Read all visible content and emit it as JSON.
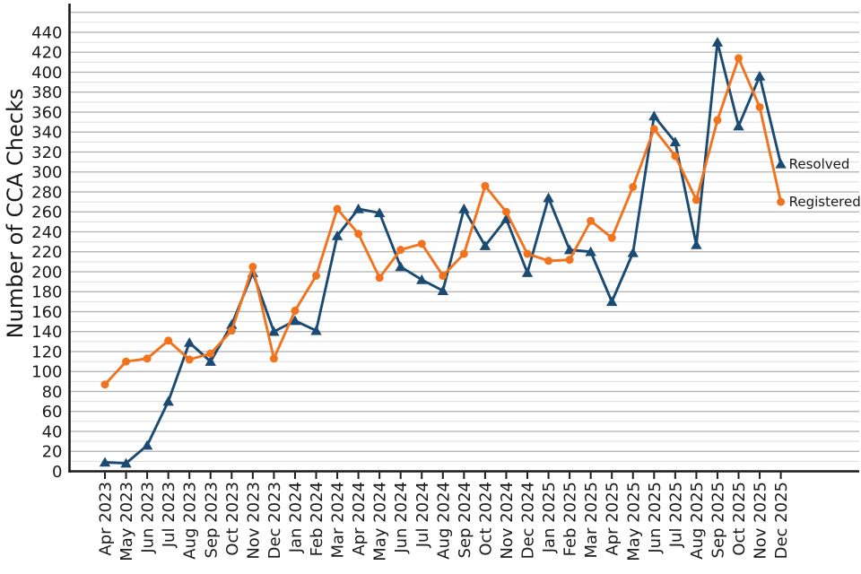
{
  "figure": {
    "background": "#ffffff"
  },
  "chart_data": {
    "type": "line",
    "title": "",
    "xlabel": "",
    "ylabel": "Number of CCA Checks",
    "categories": [
      "Apr 2023",
      "May 2023",
      "Jun 2023",
      "Jul 2023",
      "Aug 2023",
      "Sep 2023",
      "Oct 2023",
      "Nov 2023",
      "Dec 2023",
      "Jan 2024",
      "Feb 2024",
      "Mar 2024",
      "Apr 2024",
      "May 2024",
      "Jun 2024",
      "Jul 2024",
      "Aug 2024",
      "Sep 2024",
      "Oct 2024",
      "Nov 2024",
      "Dec 2024",
      "Jan 2025",
      "Feb 2025",
      "Mar 2025",
      "Apr 2025",
      "May 2025",
      "Jun 2025",
      "Jul 2025",
      "Aug 2025",
      "Sep 2025",
      "Oct 2025",
      "Nov 2025",
      "Dec 2025"
    ],
    "series": [
      {
        "name": "Resolved",
        "color": "#1b4a72",
        "marker": "triangle-up",
        "values": [
          9,
          8,
          26,
          70,
          129,
          110,
          147,
          199,
          140,
          151,
          141,
          236,
          263,
          259,
          205,
          192,
          181,
          263,
          226,
          253,
          199,
          274,
          222,
          220,
          170,
          219,
          356,
          330,
          227,
          430,
          346,
          396,
          308
        ]
      },
      {
        "name": "Registered",
        "color": "#f2731e",
        "marker": "circle",
        "values": [
          87,
          110,
          113,
          131,
          112,
          118,
          141,
          205,
          113,
          161,
          196,
          263,
          238,
          194,
          222,
          228,
          196,
          218,
          286,
          260,
          218,
          211,
          212,
          251,
          234,
          285,
          343,
          316,
          272,
          352,
          414,
          365,
          270
        ]
      }
    ],
    "y_ticks": [
      0,
      20,
      40,
      60,
      80,
      100,
      120,
      140,
      160,
      180,
      200,
      220,
      240,
      260,
      280,
      300,
      320,
      340,
      360,
      380,
      400,
      420,
      440
    ],
    "ylim": [
      0,
      462
    ],
    "grid": {
      "orientation": "horizontal",
      "major_step": 20,
      "minor_step": 10,
      "major_color": "#afafaf",
      "minor_color": "#dcdcdc"
    },
    "axis_color": "#1a1a1a",
    "legend": {
      "style": "line-end-labels",
      "entries": [
        "Resolved",
        "Registered"
      ]
    }
  }
}
